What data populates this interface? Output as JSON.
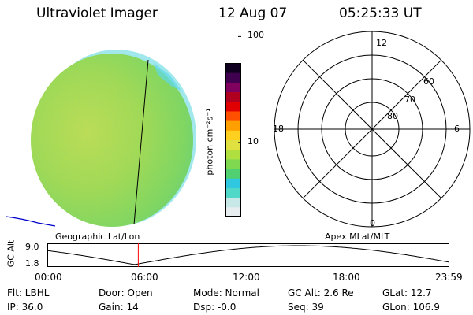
{
  "header": {
    "instrument": "Ultraviolet Imager",
    "date": "12 Aug 07",
    "time": "05:25:33 UT"
  },
  "colorbar": {
    "unit_label": "photon cm⁻²s⁻¹",
    "ticks": [
      "100",
      "10"
    ],
    "log_range": [
      0.3,
      1.75
    ],
    "tick_values": [
      100,
      10
    ],
    "colors": [
      "#e8eef0",
      "#c8e8e8",
      "#50d8c8",
      "#30c8e0",
      "#50d070",
      "#80d850",
      "#b0e040",
      "#e0e040",
      "#ffd020",
      "#ffa000",
      "#ff5000",
      "#e00000",
      "#b00020",
      "#800060",
      "#400050",
      "#100020"
    ]
  },
  "image_panel": {
    "label": "Geographic Lat/Lon",
    "disk_color": "#a8e050",
    "limb_color": "#40c8e8"
  },
  "polar_panel": {
    "label": "Apex MLat/MLT",
    "mlt_labels": {
      "top": "12",
      "right": "6",
      "bottom": "0",
      "left": "18"
    },
    "mlat_labels": [
      "60",
      "70",
      "80"
    ]
  },
  "altitude_plot": {
    "ylabel": "GC Alt",
    "yticks": [
      "9.0",
      "1.8"
    ],
    "xticks": [
      "00:00",
      "06:00",
      "12:00",
      "18:00",
      "23:59"
    ],
    "marker_time_hours": 5.43,
    "marker_color": "#ff0000"
  },
  "info": {
    "filter": "Flt: LBHL",
    "door": "Door: Open",
    "mode": "Mode: Normal",
    "gc_alt": "GC Alt: 2.6 Re",
    "glat": "GLat:  12.7",
    "ip": "IP: 36.0",
    "gain": "Gain: 14",
    "dsp": "Dsp:   -0.0",
    "seq": "Seq: 39",
    "glon": "GLon: 106.9"
  }
}
